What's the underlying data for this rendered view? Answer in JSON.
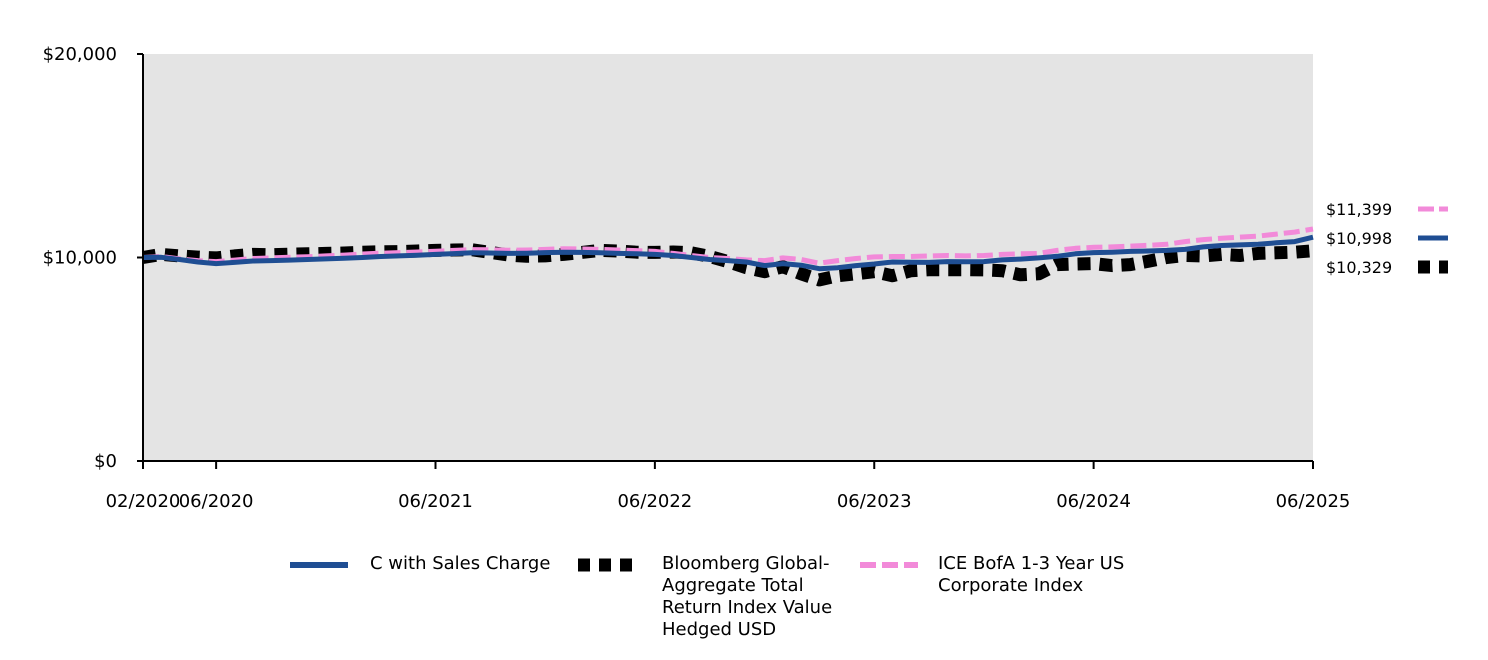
{
  "chart_data": {
    "type": "line",
    "title": "",
    "xlabel": "",
    "ylabel": "",
    "ylim": [
      0,
      20000
    ],
    "y_ticks": [
      0,
      10000,
      20000
    ],
    "y_tick_labels": [
      "$0",
      "$10,000",
      "$20,000"
    ],
    "x_start": "02/2020",
    "x_end": "06/2025",
    "x_tick_labels": [
      "02/2020",
      "06/2020",
      "06/2021",
      "06/2022",
      "06/2023",
      "06/2024",
      "06/2025"
    ],
    "x_tick_positions": [
      0,
      4,
      16,
      28,
      40,
      52,
      64
    ],
    "grid": false,
    "background": "#e4e4e4",
    "series": [
      {
        "name": "C with Sales Charge",
        "end_label": "$10,998",
        "color": "#1f4e93",
        "style": "solid",
        "points": [
          [
            0,
            10000
          ],
          [
            1,
            10010
          ],
          [
            2,
            9900
          ],
          [
            3,
            9780
          ],
          [
            4,
            9700
          ],
          [
            5,
            9760
          ],
          [
            6,
            9830
          ],
          [
            7,
            9850
          ],
          [
            8,
            9870
          ],
          [
            9,
            9900
          ],
          [
            10,
            9930
          ],
          [
            11,
            9960
          ],
          [
            12,
            10000
          ],
          [
            13,
            10050
          ],
          [
            14,
            10080
          ],
          [
            15,
            10110
          ],
          [
            16,
            10150
          ],
          [
            17,
            10190
          ],
          [
            18,
            10230
          ],
          [
            19,
            10220
          ],
          [
            20,
            10200
          ],
          [
            21,
            10210
          ],
          [
            22,
            10240
          ],
          [
            23,
            10260
          ],
          [
            24,
            10250
          ],
          [
            25,
            10230
          ],
          [
            26,
            10200
          ],
          [
            27,
            10180
          ],
          [
            28,
            10150
          ],
          [
            29,
            10100
          ],
          [
            30,
            10000
          ],
          [
            31,
            9900
          ],
          [
            32,
            9850
          ],
          [
            33,
            9780
          ],
          [
            34,
            9600
          ],
          [
            35,
            9700
          ],
          [
            36,
            9620
          ],
          [
            37,
            9450
          ],
          [
            38,
            9500
          ],
          [
            39,
            9600
          ],
          [
            40,
            9680
          ],
          [
            41,
            9780
          ],
          [
            42,
            9770
          ],
          [
            43,
            9760
          ],
          [
            44,
            9800
          ],
          [
            45,
            9790
          ],
          [
            46,
            9800
          ],
          [
            47,
            9880
          ],
          [
            48,
            9920
          ],
          [
            49,
            9980
          ],
          [
            50,
            10060
          ],
          [
            51,
            10180
          ],
          [
            52,
            10240
          ],
          [
            53,
            10260
          ],
          [
            54,
            10300
          ],
          [
            55,
            10320
          ],
          [
            56,
            10350
          ],
          [
            57,
            10400
          ],
          [
            58,
            10520
          ],
          [
            59,
            10590
          ],
          [
            60,
            10620
          ],
          [
            61,
            10650
          ],
          [
            62,
            10720
          ],
          [
            63,
            10780
          ],
          [
            64,
            10998
          ]
        ]
      },
      {
        "name": "Bloomberg Global-Aggregate Total Return Index Value Hedged USD",
        "end_label": "$10,329",
        "color": "#000000",
        "style": "dotted",
        "points": [
          [
            0,
            10000
          ],
          [
            1,
            10150
          ],
          [
            2,
            10080
          ],
          [
            3,
            10020
          ],
          [
            4,
            9980
          ],
          [
            5,
            10080
          ],
          [
            6,
            10150
          ],
          [
            7,
            10140
          ],
          [
            8,
            10160
          ],
          [
            9,
            10180
          ],
          [
            10,
            10200
          ],
          [
            11,
            10220
          ],
          [
            12,
            10260
          ],
          [
            13,
            10280
          ],
          [
            14,
            10290
          ],
          [
            15,
            10320
          ],
          [
            16,
            10350
          ],
          [
            17,
            10370
          ],
          [
            18,
            10380
          ],
          [
            19,
            10250
          ],
          [
            20,
            10120
          ],
          [
            21,
            10060
          ],
          [
            22,
            10080
          ],
          [
            23,
            10150
          ],
          [
            24,
            10250
          ],
          [
            25,
            10350
          ],
          [
            26,
            10320
          ],
          [
            27,
            10260
          ],
          [
            28,
            10250
          ],
          [
            29,
            10270
          ],
          [
            30,
            10230
          ],
          [
            31,
            10050
          ],
          [
            32,
            9800
          ],
          [
            33,
            9500
          ],
          [
            34,
            9300
          ],
          [
            35,
            9550
          ],
          [
            36,
            9200
          ],
          [
            37,
            8900
          ],
          [
            38,
            9100
          ],
          [
            39,
            9200
          ],
          [
            40,
            9300
          ],
          [
            41,
            9100
          ],
          [
            42,
            9350
          ],
          [
            43,
            9400
          ],
          [
            44,
            9400
          ],
          [
            45,
            9400
          ],
          [
            46,
            9390
          ],
          [
            47,
            9350
          ],
          [
            48,
            9150
          ],
          [
            49,
            9200
          ],
          [
            50,
            9650
          ],
          [
            51,
            9680
          ],
          [
            52,
            9700
          ],
          [
            53,
            9600
          ],
          [
            54,
            9650
          ],
          [
            55,
            9820
          ],
          [
            56,
            10000
          ],
          [
            57,
            10100
          ],
          [
            58,
            10080
          ],
          [
            59,
            10150
          ],
          [
            60,
            10100
          ],
          [
            61,
            10200
          ],
          [
            62,
            10230
          ],
          [
            63,
            10260
          ],
          [
            64,
            10329
          ]
        ]
      },
      {
        "name": "ICE BofA 1-3 Year US Corporate Index",
        "end_label": "$11,399",
        "color": "#f28ad9",
        "style": "dashed",
        "points": [
          [
            0,
            10000
          ],
          [
            1,
            10050
          ],
          [
            2,
            9930
          ],
          [
            3,
            9850
          ],
          [
            4,
            9800
          ],
          [
            5,
            9870
          ],
          [
            6,
            9950
          ],
          [
            7,
            9980
          ],
          [
            8,
            10010
          ],
          [
            9,
            10040
          ],
          [
            10,
            10080
          ],
          [
            11,
            10120
          ],
          [
            12,
            10170
          ],
          [
            13,
            10210
          ],
          [
            14,
            10240
          ],
          [
            15,
            10270
          ],
          [
            16,
            10310
          ],
          [
            17,
            10350
          ],
          [
            18,
            10390
          ],
          [
            19,
            10380
          ],
          [
            20,
            10360
          ],
          [
            21,
            10370
          ],
          [
            22,
            10400
          ],
          [
            23,
            10430
          ],
          [
            24,
            10420
          ],
          [
            25,
            10400
          ],
          [
            26,
            10370
          ],
          [
            27,
            10340
          ],
          [
            28,
            10300
          ],
          [
            29,
            10200
          ],
          [
            30,
            10100
          ],
          [
            31,
            10000
          ],
          [
            32,
            9950
          ],
          [
            33,
            9880
          ],
          [
            34,
            9850
          ],
          [
            35,
            9980
          ],
          [
            36,
            9900
          ],
          [
            37,
            9720
          ],
          [
            38,
            9850
          ],
          [
            39,
            9950
          ],
          [
            40,
            10030
          ],
          [
            41,
            10050
          ],
          [
            42,
            10050
          ],
          [
            43,
            10080
          ],
          [
            44,
            10100
          ],
          [
            45,
            10080
          ],
          [
            46,
            10100
          ],
          [
            47,
            10150
          ],
          [
            48,
            10180
          ],
          [
            49,
            10200
          ],
          [
            50,
            10350
          ],
          [
            51,
            10450
          ],
          [
            52,
            10500
          ],
          [
            53,
            10520
          ],
          [
            54,
            10560
          ],
          [
            55,
            10600
          ],
          [
            56,
            10650
          ],
          [
            57,
            10780
          ],
          [
            58,
            10880
          ],
          [
            59,
            10950
          ],
          [
            60,
            11000
          ],
          [
            61,
            11050
          ],
          [
            62,
            11150
          ],
          [
            63,
            11250
          ],
          [
            64,
            11399
          ]
        ]
      }
    ]
  }
}
